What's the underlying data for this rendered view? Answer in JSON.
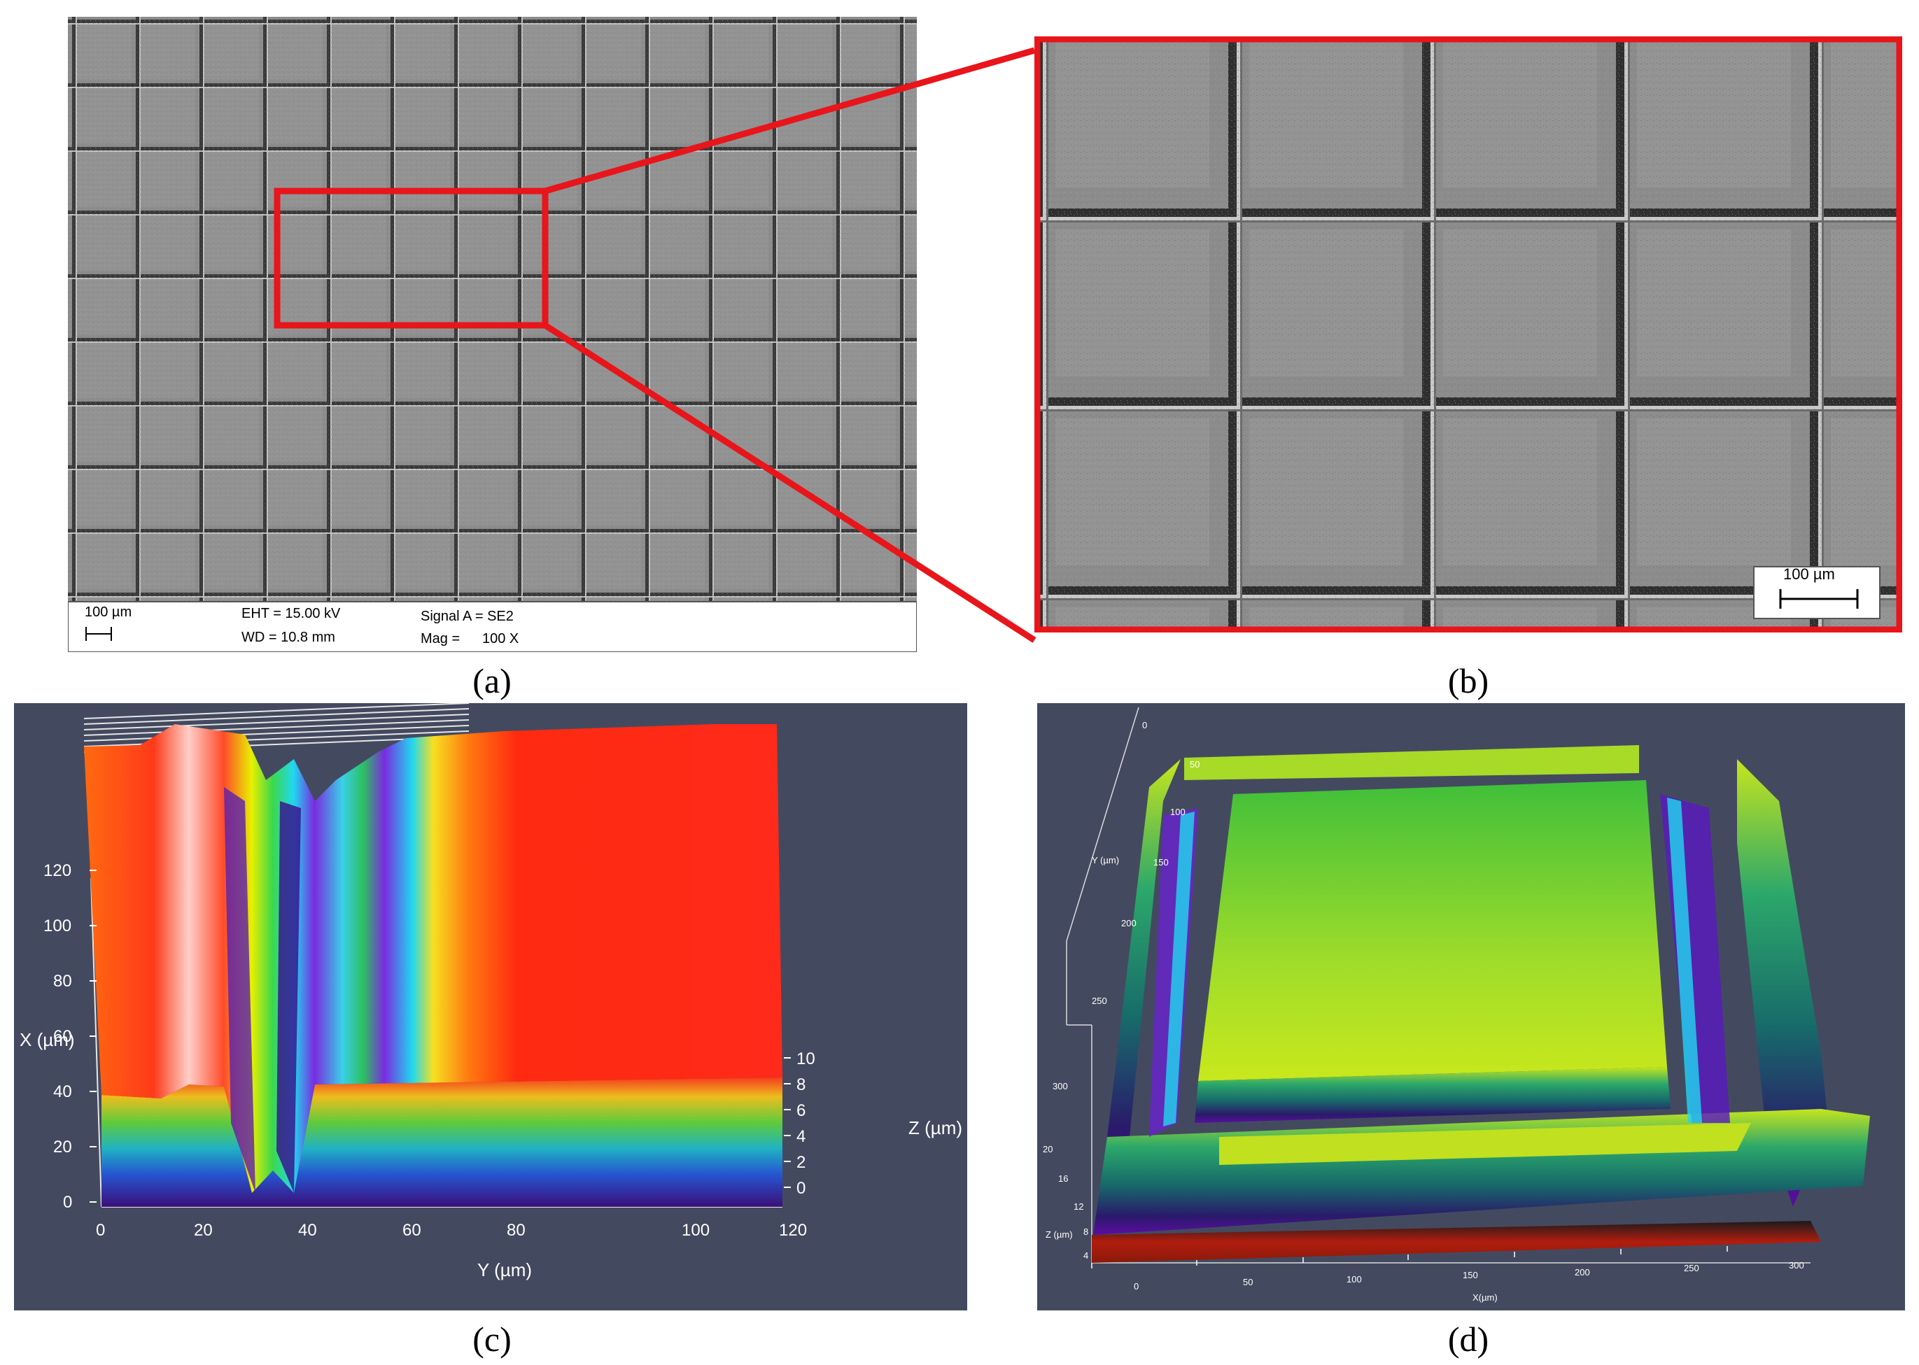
{
  "panels": {
    "a": {
      "caption": "(a)",
      "info_bar": {
        "scale_label": "100 µm",
        "eht": "EHT = 15.00 kV",
        "wd": "WD = 10.8 mm",
        "signal": "Signal A = SE2",
        "mag_label": "Mag =",
        "mag_value": "100 X"
      }
    },
    "b": {
      "caption": "(b)",
      "scale_label": "100 µm"
    },
    "c": {
      "caption": "(c)",
      "x_axis_label": "X (µm)",
      "y_axis_label": "Y (µm)",
      "z_axis_label": "Z (µm)",
      "x_ticks": [
        "0",
        "20",
        "40",
        "60",
        "80",
        "100",
        "120"
      ],
      "y_ticks": [
        "0",
        "20",
        "40",
        "60",
        "80",
        "100",
        "120"
      ],
      "z_ticks": [
        "0",
        "2",
        "4",
        "6",
        "8",
        "10"
      ]
    },
    "d": {
      "caption": "(d)",
      "x_axis_label": "X(µm)",
      "y_axis_label": "Y (µm)",
      "z_axis_label": "Z (µm)",
      "x_ticks": [
        "0",
        "50",
        "100",
        "150",
        "200",
        "250",
        "300"
      ],
      "y_ticks": [
        "0",
        "50",
        "100",
        "150",
        "200",
        "250",
        "300"
      ],
      "z_ticks": [
        "4",
        "8",
        "12",
        "16",
        "20"
      ]
    }
  },
  "colors": {
    "highlight_box": "#e8151b",
    "plot_background": "#434a5f",
    "sem_background": "#8a8a8a",
    "sem_groove": "#2e2e2e"
  }
}
